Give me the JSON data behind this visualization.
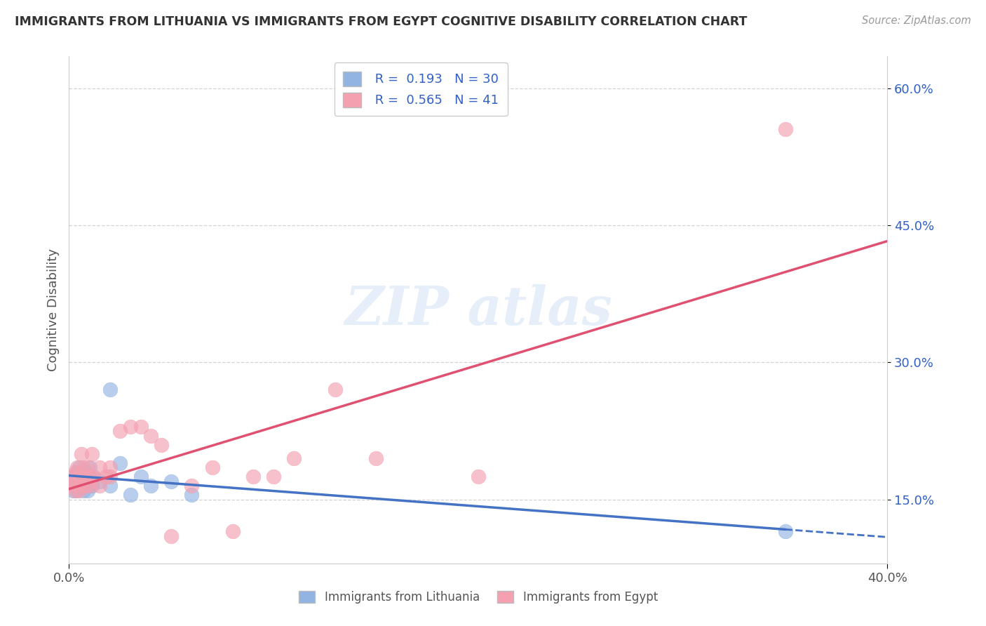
{
  "title": "IMMIGRANTS FROM LITHUANIA VS IMMIGRANTS FROM EGYPT COGNITIVE DISABILITY CORRELATION CHART",
  "source": "Source: ZipAtlas.com",
  "ylabel": "Cognitive Disability",
  "x_min": 0.0,
  "x_max": 0.4,
  "y_min": 0.08,
  "y_max": 0.635,
  "y_ticks": [
    0.15,
    0.3,
    0.45,
    0.6
  ],
  "y_tick_labels": [
    "15.0%",
    "30.0%",
    "45.0%",
    "60.0%"
  ],
  "lithuania_color": "#92b4e3",
  "egypt_color": "#f4a0b0",
  "lithuania_line_color": "#4472c4",
  "egypt_line_color": "#e05070",
  "lithuania_R": 0.193,
  "lithuania_N": 30,
  "egypt_R": 0.565,
  "egypt_N": 41,
  "legend_text_color": "#3060c8",
  "background_color": "#ffffff",
  "grid_color": "#c8c8c8",
  "lithuania_x": [
    0.001,
    0.002,
    0.002,
    0.003,
    0.003,
    0.004,
    0.004,
    0.005,
    0.005,
    0.006,
    0.006,
    0.007,
    0.007,
    0.008,
    0.008,
    0.009,
    0.01,
    0.01,
    0.011,
    0.012,
    0.015,
    0.02,
    0.025,
    0.03,
    0.035,
    0.05,
    0.06,
    0.02,
    0.04,
    0.35
  ],
  "lithuania_y": [
    0.175,
    0.16,
    0.17,
    0.165,
    0.175,
    0.18,
    0.16,
    0.17,
    0.185,
    0.175,
    0.165,
    0.16,
    0.175,
    0.18,
    0.17,
    0.16,
    0.175,
    0.185,
    0.165,
    0.175,
    0.17,
    0.165,
    0.19,
    0.155,
    0.175,
    0.17,
    0.155,
    0.27,
    0.165,
    0.115
  ],
  "egypt_x": [
    0.001,
    0.002,
    0.002,
    0.003,
    0.003,
    0.004,
    0.004,
    0.005,
    0.005,
    0.006,
    0.006,
    0.007,
    0.007,
    0.008,
    0.008,
    0.009,
    0.01,
    0.01,
    0.011,
    0.012,
    0.015,
    0.015,
    0.018,
    0.02,
    0.02,
    0.025,
    0.03,
    0.035,
    0.04,
    0.045,
    0.05,
    0.06,
    0.07,
    0.08,
    0.09,
    0.1,
    0.11,
    0.13,
    0.15,
    0.2,
    0.35
  ],
  "egypt_y": [
    0.17,
    0.165,
    0.175,
    0.18,
    0.16,
    0.175,
    0.185,
    0.16,
    0.175,
    0.2,
    0.165,
    0.175,
    0.185,
    0.175,
    0.165,
    0.185,
    0.175,
    0.165,
    0.2,
    0.175,
    0.165,
    0.185,
    0.175,
    0.185,
    0.175,
    0.225,
    0.23,
    0.23,
    0.22,
    0.21,
    0.11,
    0.165,
    0.185,
    0.115,
    0.175,
    0.175,
    0.195,
    0.27,
    0.195,
    0.175,
    0.555
  ]
}
